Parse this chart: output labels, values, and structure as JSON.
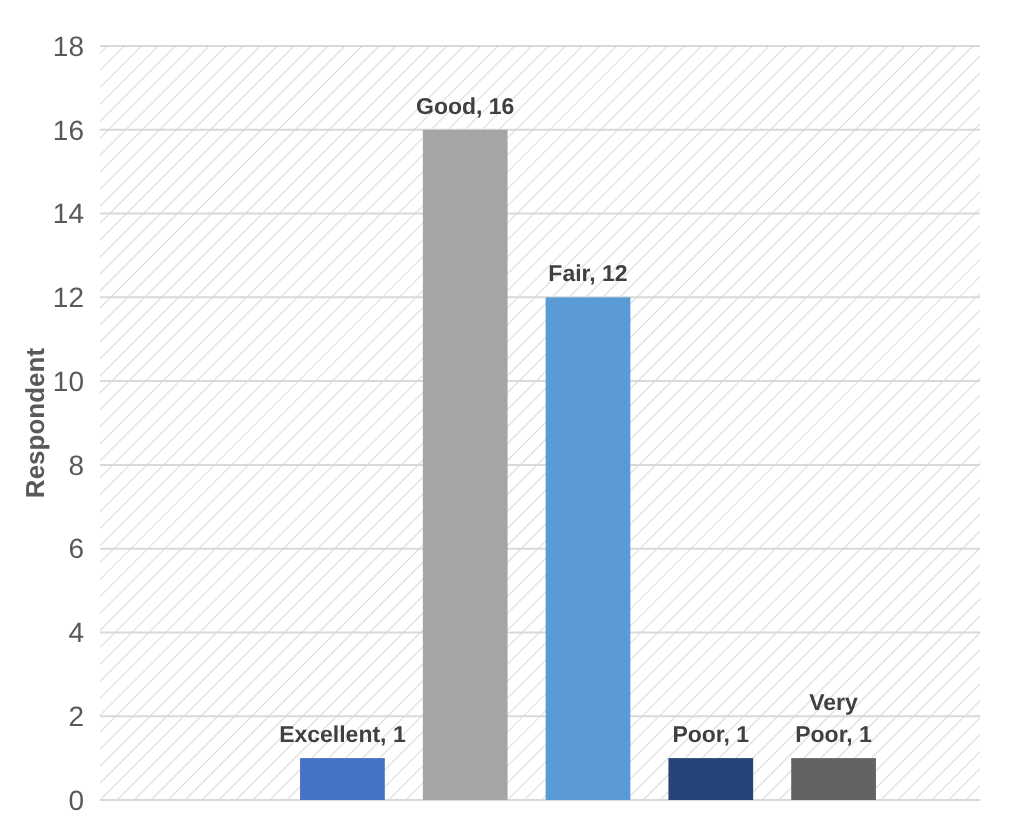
{
  "chart_data": {
    "type": "bar",
    "ylabel": "Respondent",
    "categories": [
      null,
      null,
      null,
      null,
      null
    ],
    "values": [
      1,
      16,
      12,
      1,
      1
    ],
    "value_labels": [
      "Excellent, 1",
      "Good, 16",
      "Fair, 12",
      "Poor, 1",
      "Very Poor, 1"
    ],
    "colors": [
      "#4472c4",
      "#a5a5a5",
      "#5b9bd5",
      "#264478",
      "#636363"
    ],
    "ylim": [
      0,
      18
    ],
    "yticks": [
      0,
      2,
      4,
      6,
      8,
      10,
      12,
      14,
      16,
      18
    ],
    "grid": "y",
    "tick_labels": "y"
  }
}
